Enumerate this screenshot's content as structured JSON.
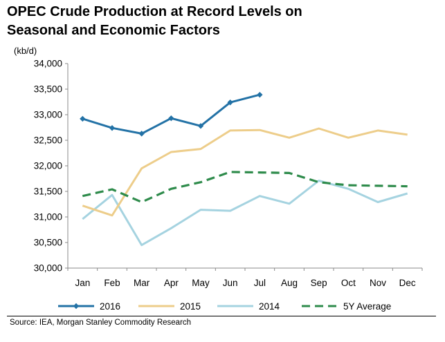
{
  "title_line1": "OPEC Crude Production at Record Levels on",
  "title_line2": "Seasonal and Economic Factors",
  "source": "Source: IEA, Morgan Stanley Commodity Research",
  "chart_data": {
    "type": "line",
    "title": "OPEC Crude Production at Record Levels on Seasonal and Economic Factors",
    "ylabel": "(kb/d)",
    "xlabel": "",
    "ylim": [
      30000,
      34000
    ],
    "yticks": [
      30000,
      30500,
      31000,
      31500,
      32000,
      32500,
      33000,
      33500,
      34000
    ],
    "ytick_labels": [
      "30,000",
      "30,500",
      "31,000",
      "31,500",
      "32,000",
      "32,500",
      "33,000",
      "33,500",
      "34,000"
    ],
    "categories": [
      "Jan",
      "Feb",
      "Mar",
      "Apr",
      "May",
      "Jun",
      "Jul",
      "Aug",
      "Sep",
      "Oct",
      "Nov",
      "Dec"
    ],
    "grid": false,
    "legend": "bottom",
    "series": [
      {
        "name": "2016",
        "color": "#2372A6",
        "style": "solid-marker",
        "values": [
          32920,
          32740,
          32630,
          32930,
          32780,
          33240,
          33390,
          null,
          null,
          null,
          null,
          null
        ]
      },
      {
        "name": "2015",
        "color": "#EDCD8A",
        "style": "solid",
        "values": [
          31220,
          31030,
          31950,
          32270,
          32330,
          32690,
          32700,
          32550,
          32730,
          32550,
          32690,
          32610
        ]
      },
      {
        "name": "2014",
        "color": "#A5D3E0",
        "style": "solid",
        "values": [
          30960,
          31430,
          30450,
          30780,
          31140,
          31120,
          31410,
          31260,
          31710,
          31550,
          31290,
          31460
        ]
      },
      {
        "name": "5Y Average",
        "color": "#2E8B4B",
        "style": "dashed",
        "values": [
          31410,
          31540,
          31290,
          31550,
          31680,
          31880,
          31870,
          31860,
          31680,
          31620,
          31610,
          31600
        ]
      }
    ]
  }
}
